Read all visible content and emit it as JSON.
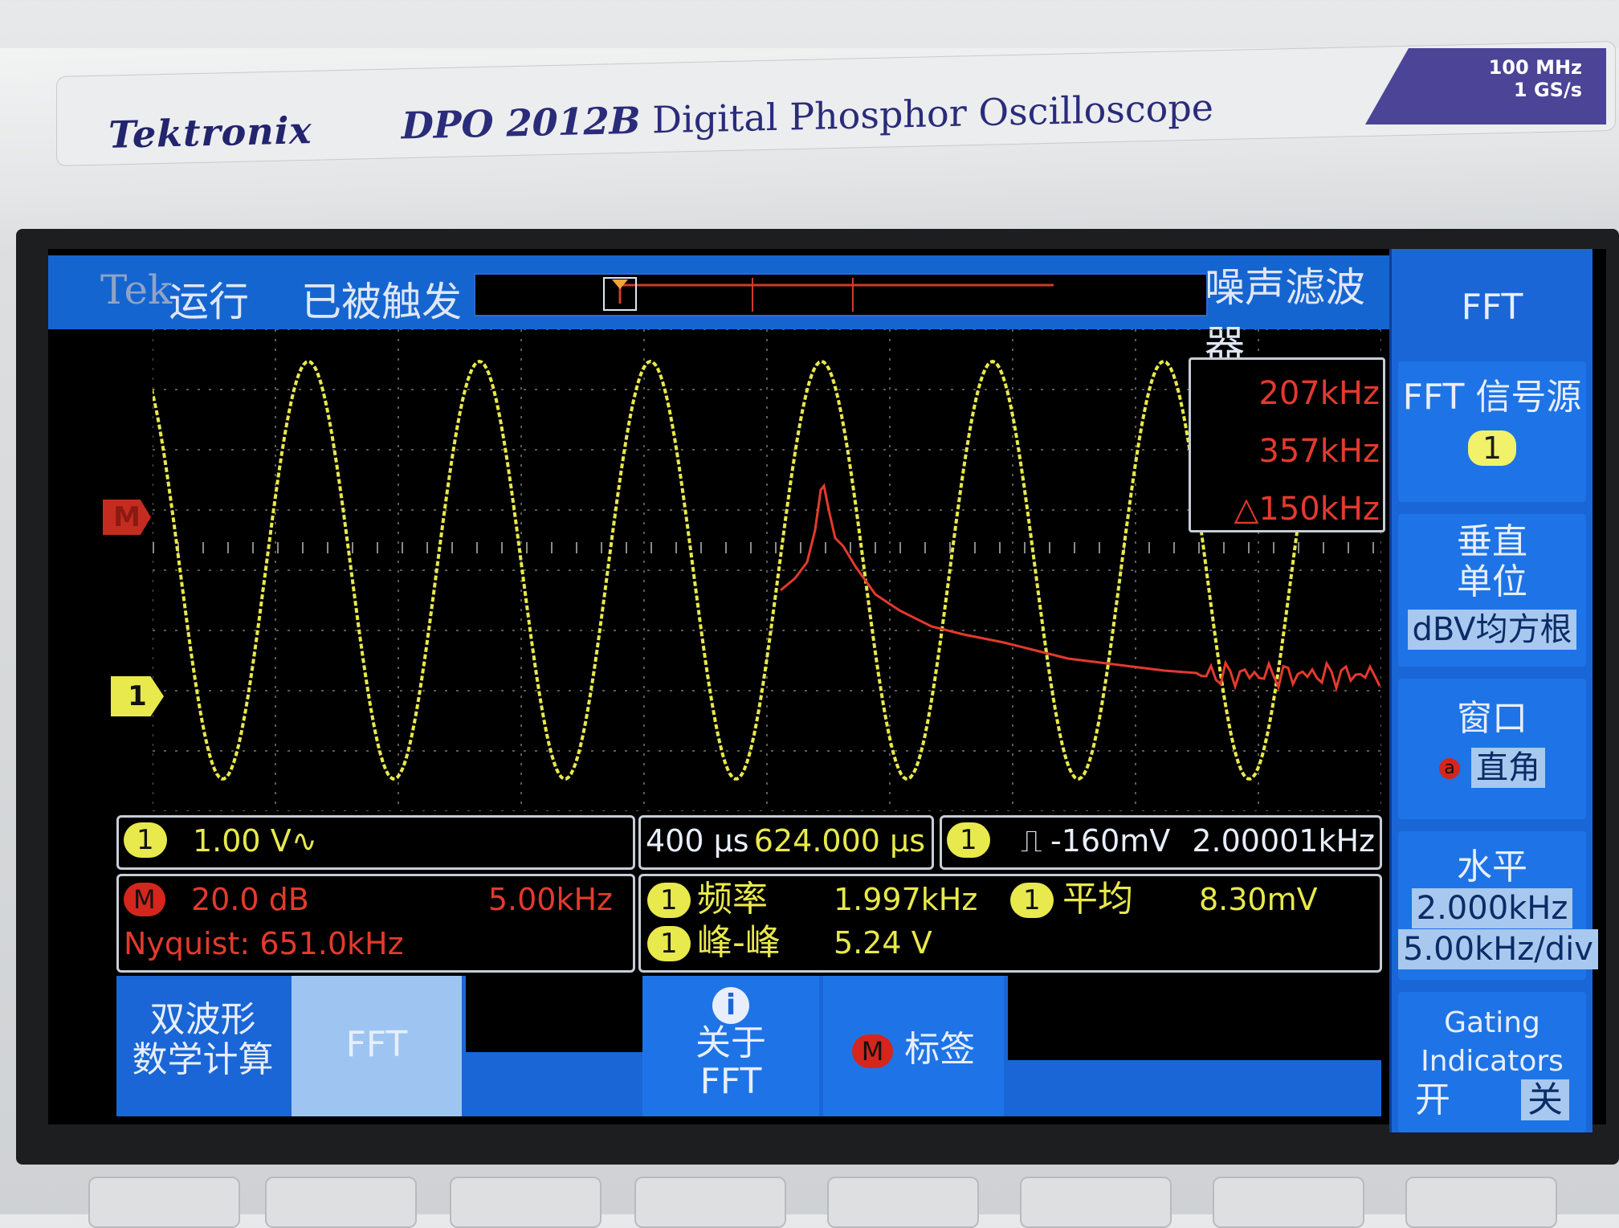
{
  "device": {
    "brand": "Tektronix",
    "model": "DPO 2012B",
    "description": "Digital Phosphor Oscilloscope",
    "spec_bandwidth": "100 MHz",
    "spec_sample_rate": "1 GS/s"
  },
  "topbar": {
    "logo": "Tek",
    "run_state": "运行",
    "trigger_state": "已被触发",
    "right_title": "噪声滤波器"
  },
  "right_menu": {
    "title": "FFT",
    "source": {
      "label": "FFT 信号源",
      "value": "1"
    },
    "vertical_units": {
      "label_line1": "垂直",
      "label_line2": "单位",
      "value": "dBV均方根"
    },
    "window": {
      "label": "窗口",
      "marker": "a",
      "value": "直角"
    },
    "horizontal": {
      "label": "水平",
      "value1": "2.000kHz",
      "value2": "5.00kHz/div"
    },
    "gating": {
      "label_line1": "Gating",
      "label_line2": "Indicators",
      "on": "开",
      "off": "关"
    }
  },
  "cursor_readout": {
    "a": "207kHz",
    "b": "357kHz",
    "delta": "△150kHz"
  },
  "markers": {
    "math": "M",
    "ch1": "1"
  },
  "status": {
    "ch1_chip": "1",
    "ch1_scale": "1.00 V",
    "ch1_coupling_icon": "∿",
    "time_scale": "400 μs",
    "time_position": "624.000 μs",
    "trig_chip": "1",
    "trig_slope_icon": "⎍",
    "trig_level": "-160mV",
    "trig_freq": "2.00001kHz",
    "math_chip": "M",
    "math_scale": "20.0 dB",
    "math_span": "5.00kHz",
    "nyquist": "Nyquist: 651.0kHz",
    "meas1_chip": "1",
    "meas1_label": "频率",
    "meas1_value": "1.997kHz",
    "meas2_chip": "1",
    "meas2_label": "平均",
    "meas2_value": "8.30mV",
    "meas3_chip": "1",
    "meas3_label": "峰-峰",
    "meas3_value": "5.24 V"
  },
  "bottom_menu": {
    "dual_math_line1": "双波形",
    "dual_math_line2": "数学计算",
    "fft": "FFT",
    "about_icon": "i",
    "about_line1": "关于",
    "about_line2": "FFT",
    "label_chip": "M",
    "label_text": "标签"
  },
  "colors": {
    "ch1": "#e8e94c",
    "math": "#e33a2d",
    "menu_blue": "#1a66d6"
  }
}
